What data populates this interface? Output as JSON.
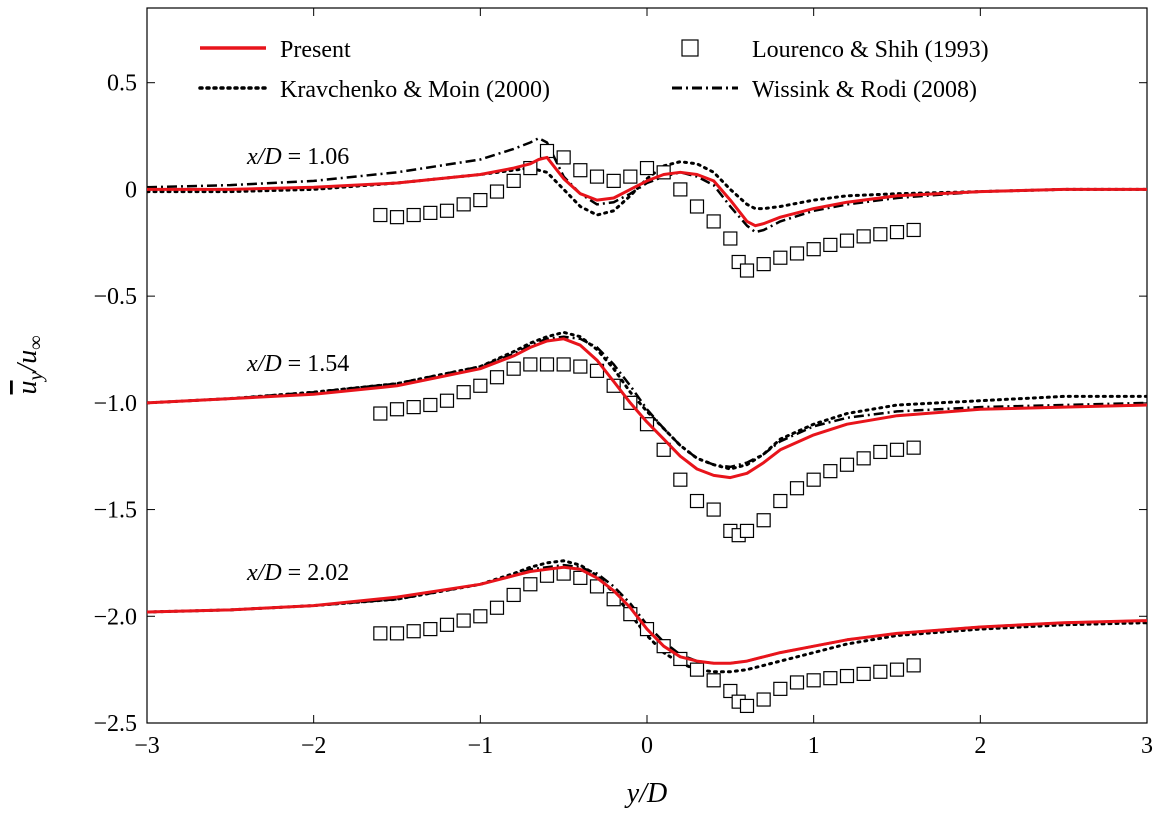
{
  "chart_data": {
    "type": "line",
    "title": "",
    "xlabel": "y/D",
    "ylabel": "ū_y/u_∞",
    "xlim": [
      -3,
      3
    ],
    "ylim": [
      -2.5,
      0.85
    ],
    "x_ticks": [
      -3,
      -2,
      -1,
      0,
      1,
      2,
      3
    ],
    "x_tick_labels": [
      "−3",
      "−2",
      "−1",
      "0",
      "1",
      "2",
      "3"
    ],
    "y_ticks": [
      0.5,
      0,
      -0.5,
      -1.0,
      -1.5,
      -2.0,
      -2.5
    ],
    "y_tick_labels": [
      "0.5",
      "0",
      "−0.5",
      "−1.0",
      "−1.5",
      "−2.0",
      "−2.5"
    ],
    "grid": false,
    "legend_position": "top",
    "legend": [
      {
        "label": "Present",
        "style": "solid",
        "color": "#e8141b"
      },
      {
        "label": "Lourenco & Shih (1993)",
        "style": "square-marker",
        "color": "#000000"
      },
      {
        "label": "Kravchenko & Moin (2000)",
        "style": "dotted",
        "color": "#000000"
      },
      {
        "label": "Wissink & Rodi (2008)",
        "style": "dashdot",
        "color": "#000000"
      }
    ],
    "annotations": [
      {
        "text": "x/D = 1.06",
        "x": -2.4,
        "y": 0.12
      },
      {
        "text": "x/D = 1.54",
        "x": -2.4,
        "y": -0.85
      },
      {
        "text": "x/D = 2.02",
        "x": -2.4,
        "y": -1.83
      }
    ],
    "groups": [
      {
        "station": "x/D = 1.06",
        "series": [
          {
            "name": "Present",
            "style": "solid",
            "color": "#e8141b",
            "x": [
              -3.0,
              -2.5,
              -2.0,
              -1.5,
              -1.0,
              -0.8,
              -0.7,
              -0.65,
              -0.6,
              -0.55,
              -0.5,
              -0.4,
              -0.3,
              -0.2,
              -0.1,
              0.0,
              0.1,
              0.2,
              0.3,
              0.4,
              0.5,
              0.6,
              0.65,
              0.7,
              0.8,
              1.0,
              1.2,
              1.5,
              2.0,
              2.5,
              3.0
            ],
            "y": [
              0.0,
              0.0,
              0.01,
              0.03,
              0.07,
              0.1,
              0.12,
              0.14,
              0.15,
              0.1,
              0.05,
              -0.02,
              -0.05,
              -0.04,
              0.0,
              0.04,
              0.07,
              0.08,
              0.07,
              0.04,
              -0.05,
              -0.15,
              -0.17,
              -0.16,
              -0.13,
              -0.09,
              -0.06,
              -0.03,
              -0.01,
              0.0,
              0.0
            ]
          },
          {
            "name": "Kravchenko & Moin (2000)",
            "style": "dotted",
            "color": "#000000",
            "x": [
              -3.0,
              -2.5,
              -2.0,
              -1.5,
              -1.0,
              -0.8,
              -0.7,
              -0.6,
              -0.5,
              -0.4,
              -0.3,
              -0.2,
              -0.1,
              0.0,
              0.1,
              0.2,
              0.3,
              0.4,
              0.5,
              0.6,
              0.65,
              0.7,
              0.8,
              1.0,
              1.2,
              1.5,
              2.0,
              2.5,
              3.0
            ],
            "y": [
              -0.01,
              -0.01,
              0.0,
              0.03,
              0.07,
              0.09,
              0.1,
              0.08,
              0.0,
              -0.08,
              -0.12,
              -0.1,
              -0.03,
              0.05,
              0.11,
              0.13,
              0.12,
              0.08,
              0.0,
              -0.07,
              -0.09,
              -0.09,
              -0.08,
              -0.05,
              -0.03,
              -0.02,
              -0.01,
              0.0,
              0.0
            ]
          },
          {
            "name": "Wissink & Rodi (2008)",
            "style": "dashdot",
            "color": "#000000",
            "x": [
              -3.0,
              -2.5,
              -2.0,
              -1.5,
              -1.0,
              -0.8,
              -0.7,
              -0.65,
              -0.6,
              -0.55,
              -0.5,
              -0.4,
              -0.3,
              -0.2,
              -0.1,
              0.0,
              0.1,
              0.2,
              0.3,
              0.4,
              0.5,
              0.6,
              0.65,
              0.7,
              0.8,
              1.0,
              1.2,
              1.5,
              2.0,
              2.5,
              3.0
            ],
            "y": [
              0.01,
              0.02,
              0.04,
              0.08,
              0.14,
              0.19,
              0.22,
              0.24,
              0.22,
              0.14,
              0.06,
              -0.02,
              -0.07,
              -0.06,
              -0.02,
              0.03,
              0.06,
              0.08,
              0.06,
              0.02,
              -0.08,
              -0.17,
              -0.2,
              -0.19,
              -0.15,
              -0.1,
              -0.07,
              -0.04,
              -0.01,
              0.0,
              0.0
            ]
          },
          {
            "name": "Lourenco & Shih (1993)",
            "style": "square-marker",
            "color": "#000000",
            "x": [
              -1.6,
              -1.5,
              -1.4,
              -1.3,
              -1.2,
              -1.1,
              -1.0,
              -0.9,
              -0.8,
              -0.7,
              -0.6,
              -0.5,
              -0.4,
              -0.3,
              -0.2,
              -0.1,
              0.0,
              0.1,
              0.2,
              0.3,
              0.4,
              0.5,
              0.55,
              0.6,
              0.7,
              0.8,
              0.9,
              1.0,
              1.1,
              1.2,
              1.3,
              1.4,
              1.5,
              1.6
            ],
            "y": [
              -0.12,
              -0.13,
              -0.12,
              -0.11,
              -0.1,
              -0.07,
              -0.05,
              -0.01,
              0.04,
              0.1,
              0.18,
              0.15,
              0.09,
              0.06,
              0.04,
              0.06,
              0.1,
              0.08,
              0.0,
              -0.08,
              -0.15,
              -0.23,
              -0.34,
              -0.38,
              -0.35,
              -0.32,
              -0.3,
              -0.28,
              -0.26,
              -0.24,
              -0.22,
              -0.21,
              -0.2,
              -0.19
            ]
          }
        ]
      },
      {
        "station": "x/D = 1.54",
        "series": [
          {
            "name": "Present",
            "style": "solid",
            "color": "#e8141b",
            "x": [
              -3.0,
              -2.5,
              -2.0,
              -1.5,
              -1.0,
              -0.8,
              -0.7,
              -0.6,
              -0.5,
              -0.4,
              -0.3,
              -0.2,
              -0.1,
              0.0,
              0.1,
              0.2,
              0.3,
              0.4,
              0.5,
              0.6,
              0.7,
              0.8,
              1.0,
              1.2,
              1.5,
              2.0,
              2.5,
              3.0
            ],
            "y": [
              -1.0,
              -0.98,
              -0.96,
              -0.92,
              -0.84,
              -0.78,
              -0.74,
              -0.71,
              -0.7,
              -0.73,
              -0.8,
              -0.9,
              -1.0,
              -1.09,
              -1.17,
              -1.25,
              -1.31,
              -1.34,
              -1.35,
              -1.33,
              -1.28,
              -1.22,
              -1.15,
              -1.1,
              -1.06,
              -1.03,
              -1.02,
              -1.01
            ]
          },
          {
            "name": "Kravchenko & Moin (2000)",
            "style": "dotted",
            "color": "#000000",
            "x": [
              -3.0,
              -2.5,
              -2.0,
              -1.5,
              -1.0,
              -0.8,
              -0.7,
              -0.6,
              -0.5,
              -0.4,
              -0.3,
              -0.2,
              -0.1,
              0.0,
              0.1,
              0.2,
              0.3,
              0.4,
              0.5,
              0.6,
              0.7,
              0.8,
              1.0,
              1.2,
              1.5,
              2.0,
              2.5,
              3.0
            ],
            "y": [
              -1.0,
              -0.98,
              -0.95,
              -0.91,
              -0.83,
              -0.76,
              -0.72,
              -0.69,
              -0.67,
              -0.69,
              -0.75,
              -0.84,
              -0.95,
              -1.04,
              -1.12,
              -1.2,
              -1.26,
              -1.29,
              -1.31,
              -1.29,
              -1.24,
              -1.17,
              -1.1,
              -1.05,
              -1.01,
              -0.99,
              -0.97,
              -0.97
            ]
          },
          {
            "name": "Wissink & Rodi (2008)",
            "style": "dashdot",
            "color": "#000000",
            "x": [
              -3.0,
              -2.5,
              -2.0,
              -1.5,
              -1.0,
              -0.8,
              -0.7,
              -0.6,
              -0.5,
              -0.4,
              -0.3,
              -0.2,
              -0.1,
              0.0,
              0.1,
              0.2,
              0.3,
              0.4,
              0.5,
              0.6,
              0.7,
              0.8,
              1.0,
              1.2,
              1.5,
              2.0,
              2.5,
              3.0
            ],
            "y": [
              -1.0,
              -0.98,
              -0.95,
              -0.91,
              -0.83,
              -0.77,
              -0.73,
              -0.7,
              -0.69,
              -0.7,
              -0.74,
              -0.82,
              -0.92,
              -1.03,
              -1.12,
              -1.2,
              -1.26,
              -1.29,
              -1.3,
              -1.28,
              -1.24,
              -1.18,
              -1.11,
              -1.07,
              -1.04,
              -1.02,
              -1.01,
              -1.0
            ]
          },
          {
            "name": "Lourenco & Shih (1993)",
            "style": "square-marker",
            "color": "#000000",
            "x": [
              -1.6,
              -1.5,
              -1.4,
              -1.3,
              -1.2,
              -1.1,
              -1.0,
              -0.9,
              -0.8,
              -0.7,
              -0.6,
              -0.5,
              -0.4,
              -0.3,
              -0.2,
              -0.1,
              0.0,
              0.1,
              0.2,
              0.3,
              0.4,
              0.5,
              0.55,
              0.6,
              0.7,
              0.8,
              0.9,
              1.0,
              1.1,
              1.2,
              1.3,
              1.4,
              1.5,
              1.6
            ],
            "y": [
              -1.05,
              -1.03,
              -1.02,
              -1.01,
              -0.99,
              -0.95,
              -0.92,
              -0.88,
              -0.84,
              -0.82,
              -0.82,
              -0.82,
              -0.83,
              -0.85,
              -0.92,
              -1.0,
              -1.1,
              -1.22,
              -1.36,
              -1.46,
              -1.5,
              -1.6,
              -1.62,
              -1.6,
              -1.55,
              -1.46,
              -1.4,
              -1.36,
              -1.32,
              -1.29,
              -1.26,
              -1.23,
              -1.22,
              -1.21
            ]
          }
        ]
      },
      {
        "station": "x/D = 2.02",
        "series": [
          {
            "name": "Present",
            "style": "solid",
            "color": "#e8141b",
            "x": [
              -3.0,
              -2.5,
              -2.0,
              -1.5,
              -1.0,
              -0.8,
              -0.7,
              -0.6,
              -0.5,
              -0.4,
              -0.3,
              -0.2,
              -0.1,
              0.0,
              0.1,
              0.2,
              0.3,
              0.4,
              0.5,
              0.6,
              0.7,
              0.8,
              1.0,
              1.2,
              1.5,
              2.0,
              2.5,
              3.0
            ],
            "y": [
              -1.98,
              -1.97,
              -1.95,
              -1.91,
              -1.85,
              -1.81,
              -1.79,
              -1.78,
              -1.77,
              -1.78,
              -1.82,
              -1.88,
              -1.96,
              -2.06,
              -2.14,
              -2.19,
              -2.21,
              -2.22,
              -2.22,
              -2.21,
              -2.19,
              -2.17,
              -2.14,
              -2.11,
              -2.08,
              -2.05,
              -2.03,
              -2.02
            ]
          },
          {
            "name": "Kravchenko & Moin (2000)",
            "style": "dotted",
            "color": "#000000",
            "x": [
              -3.0,
              -2.5,
              -2.0,
              -1.5,
              -1.0,
              -0.8,
              -0.7,
              -0.6,
              -0.5,
              -0.4,
              -0.3,
              -0.2,
              -0.1,
              0.0,
              0.1,
              0.2,
              0.3,
              0.4,
              0.5,
              0.6,
              0.7,
              0.8,
              1.0,
              1.2,
              1.5,
              2.0,
              2.5,
              3.0
            ],
            "y": [
              -1.98,
              -1.97,
              -1.95,
              -1.92,
              -1.85,
              -1.8,
              -1.77,
              -1.75,
              -1.74,
              -1.76,
              -1.81,
              -1.89,
              -1.99,
              -2.09,
              -2.17,
              -2.22,
              -2.25,
              -2.26,
              -2.26,
              -2.25,
              -2.23,
              -2.21,
              -2.17,
              -2.13,
              -2.09,
              -2.06,
              -2.04,
              -2.03
            ]
          },
          {
            "name": "Wissink & Rodi (2008)",
            "style": "dashdot",
            "color": "#000000",
            "x": [
              -3.0,
              -2.5,
              -2.0,
              -1.5,
              -1.0,
              -0.8,
              -0.7,
              -0.6,
              -0.5,
              -0.4,
              -0.3,
              -0.2,
              -0.1,
              0.0,
              0.1,
              0.2,
              0.3,
              0.4,
              0.5,
              0.6,
              0.7,
              0.8,
              1.0,
              1.2,
              1.5,
              2.0,
              2.5,
              3.0
            ],
            "y": [
              -1.98,
              -1.97,
              -1.95,
              -1.92,
              -1.85,
              -1.81,
              -1.78,
              -1.77,
              -1.76,
              -1.77,
              -1.8,
              -1.86,
              -1.94,
              -2.04,
              -2.12,
              -2.18,
              -2.21,
              -2.22,
              -2.22,
              -2.21,
              -2.19,
              -2.17,
              -2.14,
              -2.11,
              -2.08,
              -2.05,
              -2.03,
              -2.02
            ]
          },
          {
            "name": "Lourenco & Shih (1993)",
            "style": "square-marker",
            "color": "#000000",
            "x": [
              -1.6,
              -1.5,
              -1.4,
              -1.3,
              -1.2,
              -1.1,
              -1.0,
              -0.9,
              -0.8,
              -0.7,
              -0.6,
              -0.5,
              -0.4,
              -0.3,
              -0.2,
              -0.1,
              0.0,
              0.1,
              0.2,
              0.3,
              0.4,
              0.5,
              0.55,
              0.6,
              0.7,
              0.8,
              0.9,
              1.0,
              1.1,
              1.2,
              1.3,
              1.4,
              1.5,
              1.6
            ],
            "y": [
              -2.08,
              -2.08,
              -2.07,
              -2.06,
              -2.04,
              -2.02,
              -2.0,
              -1.96,
              -1.9,
              -1.85,
              -1.81,
              -1.8,
              -1.82,
              -1.86,
              -1.92,
              -1.99,
              -2.06,
              -2.14,
              -2.2,
              -2.25,
              -2.3,
              -2.35,
              -2.4,
              -2.42,
              -2.39,
              -2.34,
              -2.31,
              -2.3,
              -2.29,
              -2.28,
              -2.27,
              -2.26,
              -2.25,
              -2.23
            ]
          }
        ]
      }
    ]
  }
}
